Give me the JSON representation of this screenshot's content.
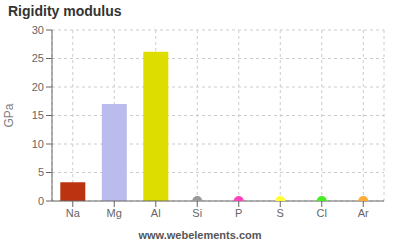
{
  "chart_data": {
    "type": "bar",
    "title": "Rigidity modulus",
    "ylabel": "GPa",
    "annotations": [
      "www.webelements.com"
    ],
    "categories": [
      "Na",
      "Mg",
      "Al",
      "Si",
      "P",
      "S",
      "Cl",
      "Ar"
    ],
    "values": [
      3.3,
      17.0,
      26.2,
      0,
      0,
      0,
      0,
      0
    ],
    "colors": [
      "#bb3311",
      "#bbbbee",
      "#dddd00",
      "#999999",
      "#ff44bb",
      "#ffff33",
      "#44ee22",
      "#ffaa33"
    ],
    "ylim": [
      0,
      30
    ],
    "yticks": [
      0,
      5,
      10,
      15,
      20,
      25,
      30
    ],
    "grid": true
  }
}
